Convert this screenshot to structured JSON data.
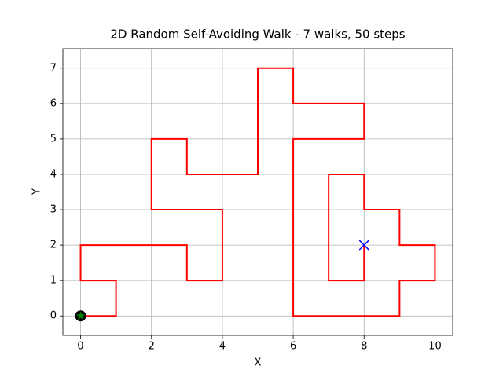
{
  "chart_data": {
    "type": "line",
    "title": "2D Random Self-Avoiding Walk - 7 walks, 50 steps",
    "xlabel": "X",
    "ylabel": "Y",
    "x": [
      0,
      1,
      1,
      0,
      0,
      1,
      2,
      3,
      3,
      4,
      4,
      4,
      3,
      2,
      2,
      2,
      3,
      3,
      4,
      5,
      5,
      5,
      5,
      6,
      6,
      7,
      8,
      8,
      7,
      6,
      6,
      6,
      6,
      6,
      6,
      7,
      8,
      9,
      9,
      10,
      10,
      9,
      9,
      8,
      8,
      7,
      7,
      7,
      7,
      8,
      8
    ],
    "series": [
      {
        "color": "#ff0000",
        "values": [
          0,
          0,
          1,
          1,
          2,
          2,
          2,
          2,
          1,
          1,
          2,
          3,
          3,
          3,
          4,
          5,
          5,
          4,
          4,
          4,
          5,
          6,
          7,
          7,
          6,
          6,
          6,
          5,
          5,
          5,
          4,
          3,
          2,
          1,
          0,
          0,
          0,
          0,
          1,
          1,
          2,
          2,
          3,
          3,
          4,
          4,
          3,
          2,
          1,
          1,
          2
        ]
      }
    ],
    "start_point": {
      "x": 0,
      "y": 0,
      "color": "#008000"
    },
    "end_point": {
      "x": 8,
      "y": 2,
      "color": "#0000ff"
    },
    "xlim": [
      -0.5,
      10.5
    ],
    "ylim": [
      -0.55,
      7.55
    ],
    "xticks": [
      0,
      2,
      4,
      6,
      8,
      10
    ],
    "yticks": [
      0,
      1,
      2,
      3,
      4,
      5,
      6,
      7
    ],
    "grid": true
  }
}
